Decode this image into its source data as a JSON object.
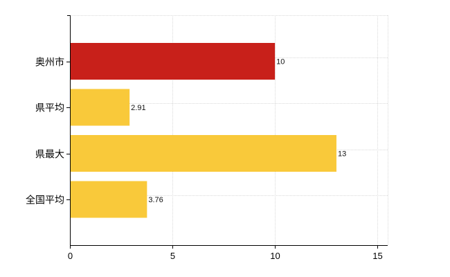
{
  "chart_data": {
    "type": "bar",
    "orientation": "horizontal",
    "categories": [
      "奥州市",
      "県平均",
      "県最大",
      "全国平均"
    ],
    "values": [
      10,
      2.91,
      13,
      3.76
    ],
    "value_labels": [
      "10",
      "2.91",
      "13",
      "3.76"
    ],
    "bar_colors": [
      "#c8201a",
      "#f9c93a",
      "#f9c93a",
      "#f9c93a"
    ],
    "xlim": [
      0,
      15.5
    ],
    "x_ticks": [
      0,
      5,
      10,
      15
    ],
    "x_tick_labels": [
      "0",
      "5",
      "10",
      "15"
    ],
    "grid": true,
    "legend": false,
    "title": "",
    "xlabel": "",
    "ylabel": ""
  }
}
